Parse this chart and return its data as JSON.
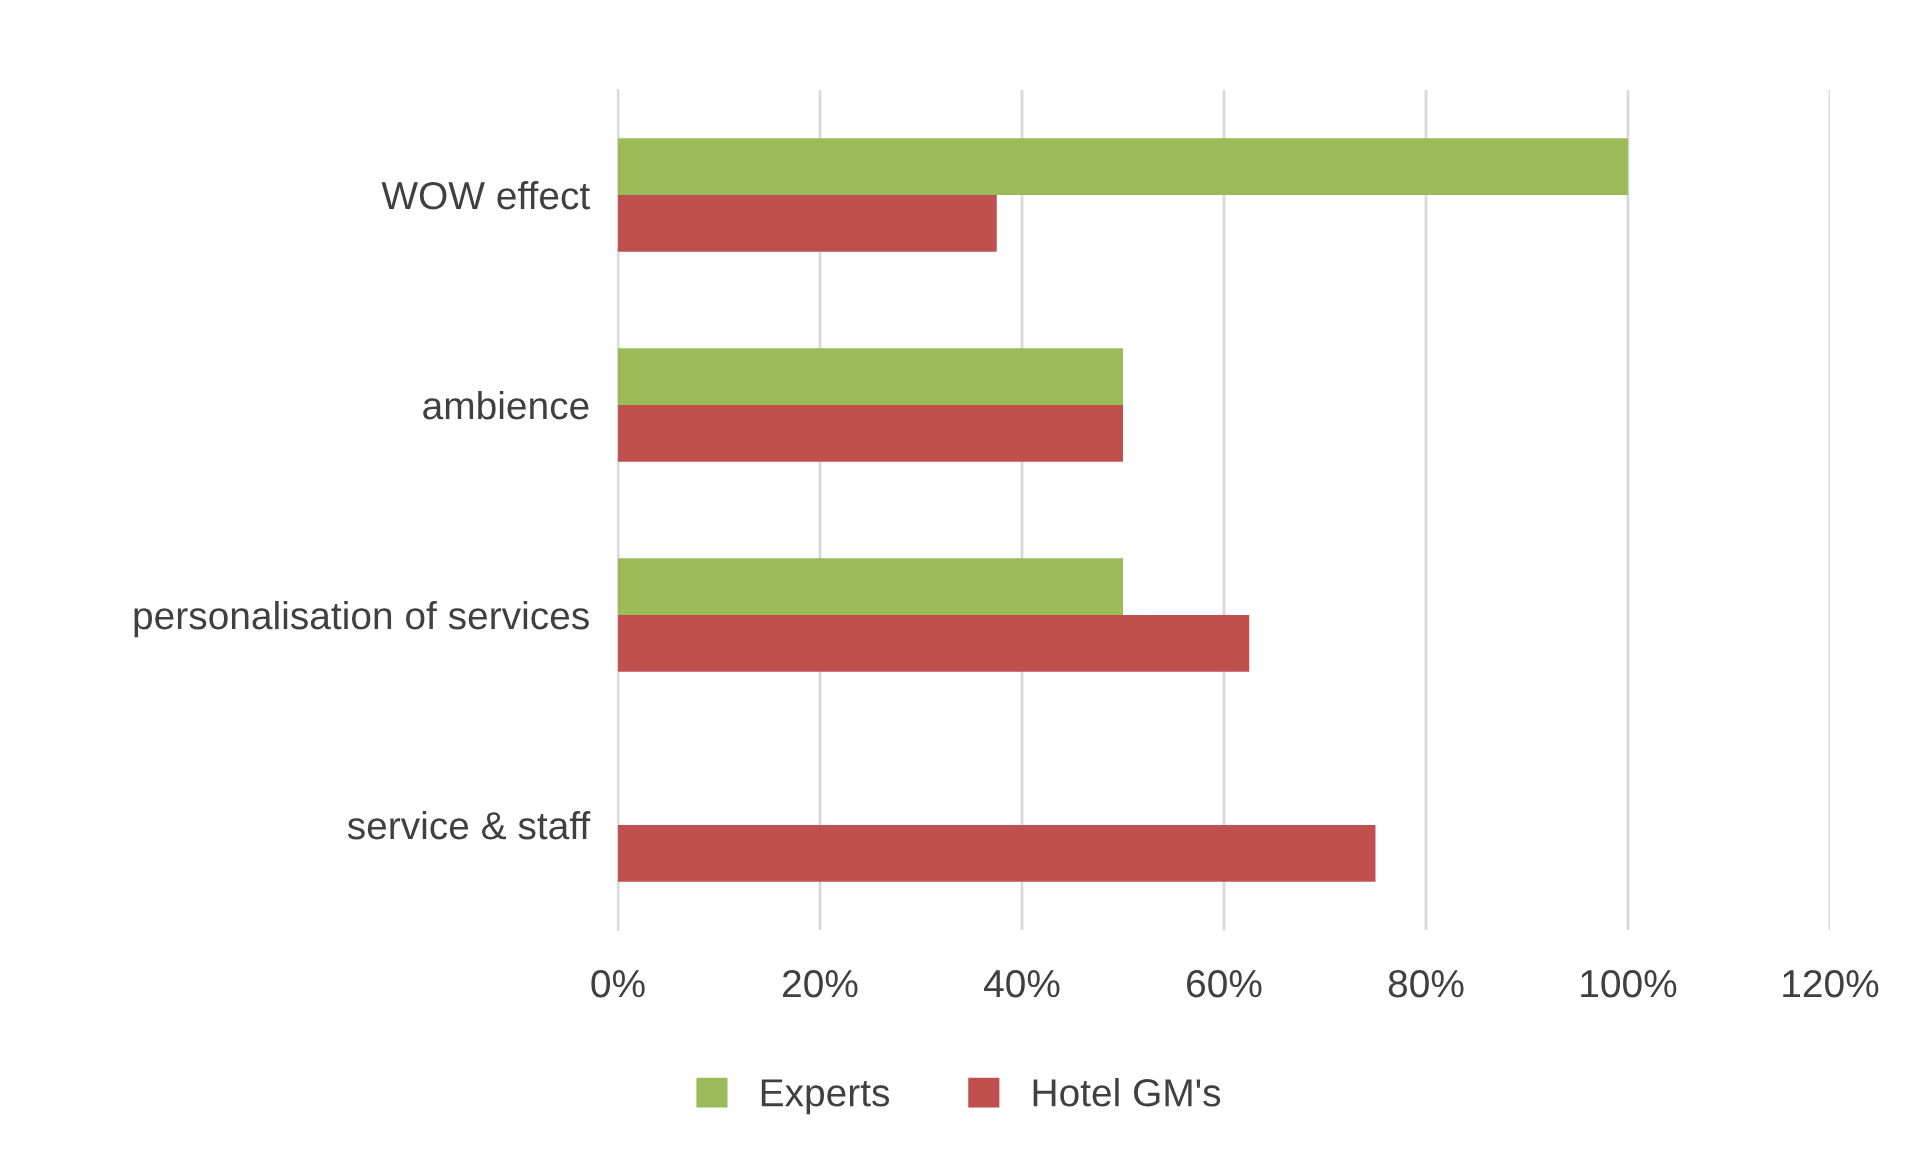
{
  "chart_data": {
    "type": "bar",
    "orientation": "horizontal",
    "categories": [
      "WOW effect",
      "ambience",
      "personalisation of services",
      "service & staff"
    ],
    "series": [
      {
        "name": "Experts",
        "color": "#9bbb59",
        "values": [
          100,
          50,
          50,
          0
        ]
      },
      {
        "name": "Hotel GM's",
        "color": "#c0504d",
        "values": [
          37.5,
          50,
          62.5,
          75
        ]
      }
    ],
    "xlim": [
      0,
      120
    ],
    "xticks": [
      {
        "value": 0,
        "label": "0%"
      },
      {
        "value": 20,
        "label": "20%"
      },
      {
        "value": 40,
        "label": "40%"
      },
      {
        "value": 60,
        "label": "60%"
      },
      {
        "value": 80,
        "label": "80%"
      },
      {
        "value": 100,
        "label": "100%"
      },
      {
        "value": 120,
        "label": "120%"
      }
    ],
    "grid": "x",
    "legend": "bottom"
  }
}
